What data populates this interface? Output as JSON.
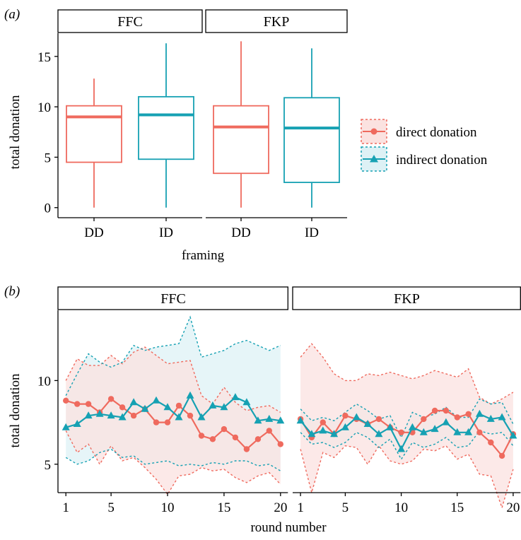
{
  "colors": {
    "direct": "#EF6A5E",
    "indirect": "#16A1B3",
    "direct_fill": "#FBE2E0",
    "indirect_fill": "#DDF1F5",
    "overlap_fill": "#D9DEDF"
  },
  "chart_data": [
    {
      "panel_label": "(a)",
      "type": "box",
      "ylabel": "total donation",
      "xlabel": "framing",
      "categories": [
        "DD",
        "ID"
      ],
      "ylim": [
        -1,
        17.3
      ],
      "yticks": [
        0,
        5,
        10,
        15
      ],
      "facets": [
        {
          "title": "FFC",
          "boxes": [
            {
              "category": "DD",
              "series": "direct donation",
              "min": 0,
              "q1": 4.5,
              "median": 9.0,
              "q3": 10.1,
              "max": 12.8
            },
            {
              "category": "ID",
              "series": "indirect donation",
              "min": 0,
              "q1": 4.8,
              "median": 9.2,
              "q3": 11.0,
              "max": 16.3
            }
          ]
        },
        {
          "title": "FKP",
          "boxes": [
            {
              "category": "DD",
              "series": "direct donation",
              "min": 0,
              "q1": 3.4,
              "median": 8.0,
              "q3": 10.1,
              "max": 16.5
            },
            {
              "category": "ID",
              "series": "indirect donation",
              "min": 0,
              "q1": 2.5,
              "median": 7.9,
              "q3": 10.9,
              "max": 15.8
            }
          ]
        }
      ],
      "legend": {
        "placement": "right",
        "entries": [
          "direct donation",
          "indirect donation"
        ]
      }
    },
    {
      "panel_label": "(b)",
      "type": "line",
      "ylabel": "total donation",
      "xlabel": "round number",
      "xlim": [
        0.3,
        20.7
      ],
      "ylim": [
        3.3,
        14.2
      ],
      "xticks": [
        1,
        5,
        10,
        15,
        20
      ],
      "yticks": [
        5,
        10
      ],
      "facets": [
        {
          "title": "FFC",
          "x": [
            1,
            2,
            3,
            4,
            5,
            6,
            7,
            8,
            9,
            10,
            11,
            12,
            13,
            14,
            15,
            16,
            17,
            18,
            19,
            20
          ],
          "series": [
            {
              "name": "direct donation",
              "marker": "circle",
              "mean": [
                8.8,
                8.6,
                8.6,
                8.1,
                8.9,
                8.4,
                7.9,
                8.3,
                7.5,
                7.5,
                8.5,
                7.9,
                6.7,
                6.5,
                7.1,
                6.6,
                5.9,
                6.5,
                7.0,
                6.2
              ],
              "lower": [
                7.0,
                5.7,
                6.2,
                5.0,
                6.1,
                5.2,
                5.4,
                4.8,
                4.1,
                3.2,
                4.3,
                4.4,
                4.8,
                4.6,
                4.7,
                4.2,
                3.9,
                4.3,
                4.5,
                3.8
              ],
              "upper": [
                10.0,
                11.3,
                10.9,
                10.9,
                11.5,
                11.0,
                11.7,
                12.0,
                11.5,
                11.0,
                11.1,
                11.2,
                9.1,
                8.6,
                9.6,
                8.7,
                8.2,
                8.4,
                8.5,
                8.1
              ]
            },
            {
              "name": "indirect donation",
              "marker": "triangle",
              "mean": [
                7.2,
                7.4,
                7.9,
                8.0,
                7.9,
                7.8,
                8.7,
                8.3,
                8.8,
                8.4,
                7.8,
                9.1,
                7.8,
                8.5,
                8.4,
                9.0,
                8.7,
                7.6,
                7.7,
                7.6
              ],
              "lower": [
                5.4,
                5.0,
                5.2,
                5.7,
                5.9,
                5.4,
                5.5,
                5.0,
                5.1,
                5.2,
                4.9,
                5.0,
                4.9,
                5.1,
                5.0,
                5.2,
                5.2,
                4.9,
                5.0,
                4.6
              ],
              "upper": [
                9.1,
                10.4,
                11.6,
                11.1,
                10.8,
                11.1,
                12.1,
                11.8,
                12.0,
                12.1,
                12.2,
                13.8,
                11.4,
                11.6,
                11.8,
                12.2,
                12.4,
                12.1,
                11.8,
                12.1
              ]
            }
          ]
        },
        {
          "title": "FKP",
          "x": [
            1,
            2,
            3,
            4,
            5,
            6,
            7,
            8,
            9,
            10,
            11,
            12,
            13,
            14,
            15,
            16,
            17,
            18,
            19,
            20
          ],
          "series": [
            {
              "name": "direct donation",
              "marker": "circle",
              "mean": [
                7.7,
                6.6,
                7.5,
                6.8,
                7.9,
                7.7,
                7.4,
                7.7,
                7.2,
                6.9,
                6.9,
                7.7,
                8.2,
                8.2,
                7.8,
                8.0,
                6.9,
                6.3,
                5.5,
                6.8
              ],
              "lower": [
                5.9,
                3.3,
                5.7,
                5.4,
                6.1,
                6.0,
                5.0,
                6.1,
                5.2,
                5.0,
                5.2,
                5.9,
                5.8,
                6.1,
                5.3,
                5.6,
                4.4,
                4.3,
                2.4,
                4.7
              ],
              "upper": [
                11.4,
                12.2,
                11.4,
                10.4,
                10.0,
                10.0,
                10.4,
                10.3,
                10.5,
                10.3,
                10.1,
                10.3,
                10.6,
                10.4,
                10.2,
                10.7,
                9.0,
                8.6,
                8.9,
                9.3
              ]
            },
            {
              "name": "indirect donation",
              "marker": "triangle",
              "mean": [
                7.6,
                6.8,
                7.0,
                6.8,
                7.2,
                7.8,
                7.4,
                6.8,
                7.2,
                5.9,
                7.2,
                6.9,
                7.1,
                7.5,
                6.9,
                6.9,
                8.0,
                7.7,
                7.8,
                6.7
              ],
              "lower": [
                6.9,
                6.2,
                6.3,
                6.0,
                6.3,
                6.9,
                6.6,
                6.0,
                6.5,
                5.3,
                6.3,
                6.0,
                6.2,
                6.6,
                6.0,
                6.1,
                7.0,
                6.8,
                6.9,
                6.1
              ],
              "upper": [
                8.3,
                7.6,
                7.8,
                7.6,
                8.1,
                8.6,
                8.2,
                7.7,
                7.9,
                6.6,
                8.1,
                7.8,
                8.0,
                8.4,
                7.8,
                7.8,
                8.9,
                8.6,
                8.7,
                7.4
              ]
            }
          ]
        }
      ]
    }
  ]
}
